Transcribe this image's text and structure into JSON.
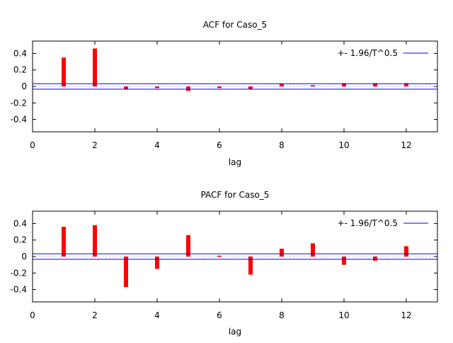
{
  "chart_data": [
    {
      "type": "bar",
      "title": "ACF for Caso_5",
      "xlabel": "lag",
      "ylabel": "",
      "xlim": [
        0,
        13
      ],
      "ylim": [
        -0.55,
        0.55
      ],
      "xticks": [
        "0",
        "2",
        "4",
        "6",
        "8",
        "10",
        "12"
      ],
      "yticks": [
        "0.4",
        "0.2",
        "0",
        "-0.2",
        "-0.4"
      ],
      "lags": [
        1,
        2,
        3,
        4,
        5,
        6,
        7,
        8,
        9,
        10,
        11,
        12
      ],
      "values": [
        0.35,
        0.46,
        -0.034,
        -0.02,
        -0.054,
        -0.02,
        -0.03,
        0.03,
        0.015,
        0.04,
        0.04,
        0.04
      ],
      "band": 0.033,
      "legend": "+- 1.96/T^0.5",
      "legend_position": "top-right",
      "bar_color": "#ff0000",
      "band_color": "#0000ff"
    },
    {
      "type": "bar",
      "title": "PACF for Caso_5",
      "xlabel": "lag",
      "ylabel": "",
      "xlim": [
        0,
        13
      ],
      "ylim": [
        -0.55,
        0.55
      ],
      "xticks": [
        "0",
        "2",
        "4",
        "6",
        "8",
        "10",
        "12"
      ],
      "yticks": [
        "0.4",
        "0.2",
        "0",
        "-0.2",
        "-0.4"
      ],
      "lags": [
        1,
        2,
        3,
        4,
        5,
        6,
        7,
        8,
        9,
        10,
        11,
        12
      ],
      "values": [
        0.36,
        0.38,
        -0.37,
        -0.15,
        0.26,
        0.01,
        -0.22,
        0.095,
        0.16,
        -0.1,
        -0.05,
        0.125
      ],
      "band": 0.033,
      "legend": "+- 1.96/T^0.5",
      "legend_position": "top-right",
      "bar_color": "#ff0000",
      "band_color": "#0000ff"
    }
  ]
}
